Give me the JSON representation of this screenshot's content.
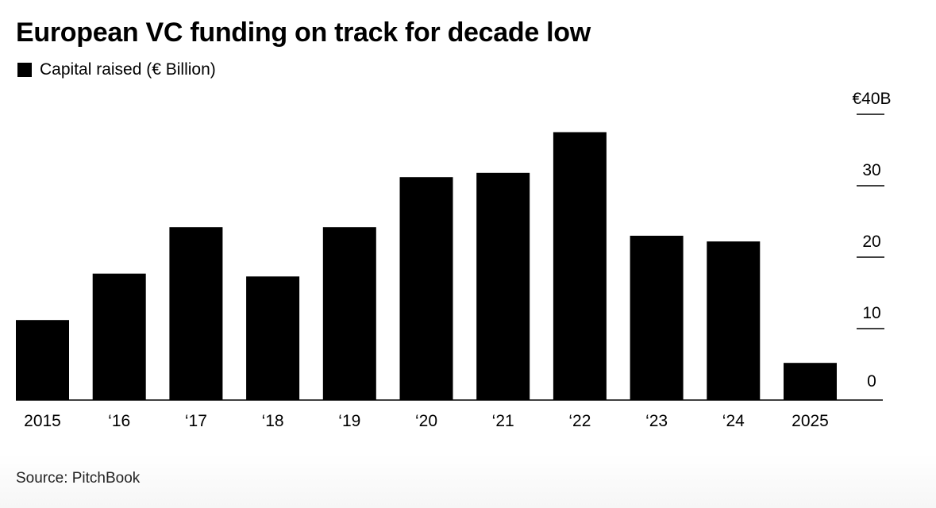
{
  "title": "European VC funding on track for decade low",
  "legend": {
    "label": "Capital raised (€ Billion)",
    "color": "#000000"
  },
  "source": "Source: PitchBook",
  "chart_data": {
    "type": "bar",
    "title": "European VC funding on track for decade low",
    "xlabel": "",
    "ylabel": "",
    "categories": [
      "2015",
      "‘16",
      "‘17",
      "‘18",
      "‘19",
      "‘20",
      "‘21",
      "‘22",
      "‘23",
      "‘24",
      "2025"
    ],
    "series": [
      {
        "name": "Capital raised (€ Billion)",
        "values": [
          11.2,
          17.7,
          24.2,
          17.3,
          24.2,
          31.2,
          31.8,
          37.5,
          23.0,
          22.2,
          5.2
        ],
        "color": "#000000"
      }
    ],
    "ylim": [
      0,
      40
    ],
    "yticks": [
      {
        "value": 0,
        "label": "0"
      },
      {
        "value": 10,
        "label": "10"
      },
      {
        "value": 20,
        "label": "20"
      },
      {
        "value": 30,
        "label": "30"
      },
      {
        "value": 40,
        "label": "€40B"
      }
    ],
    "y_axis_position": "right",
    "grid": false,
    "legend_position": "top-left"
  }
}
